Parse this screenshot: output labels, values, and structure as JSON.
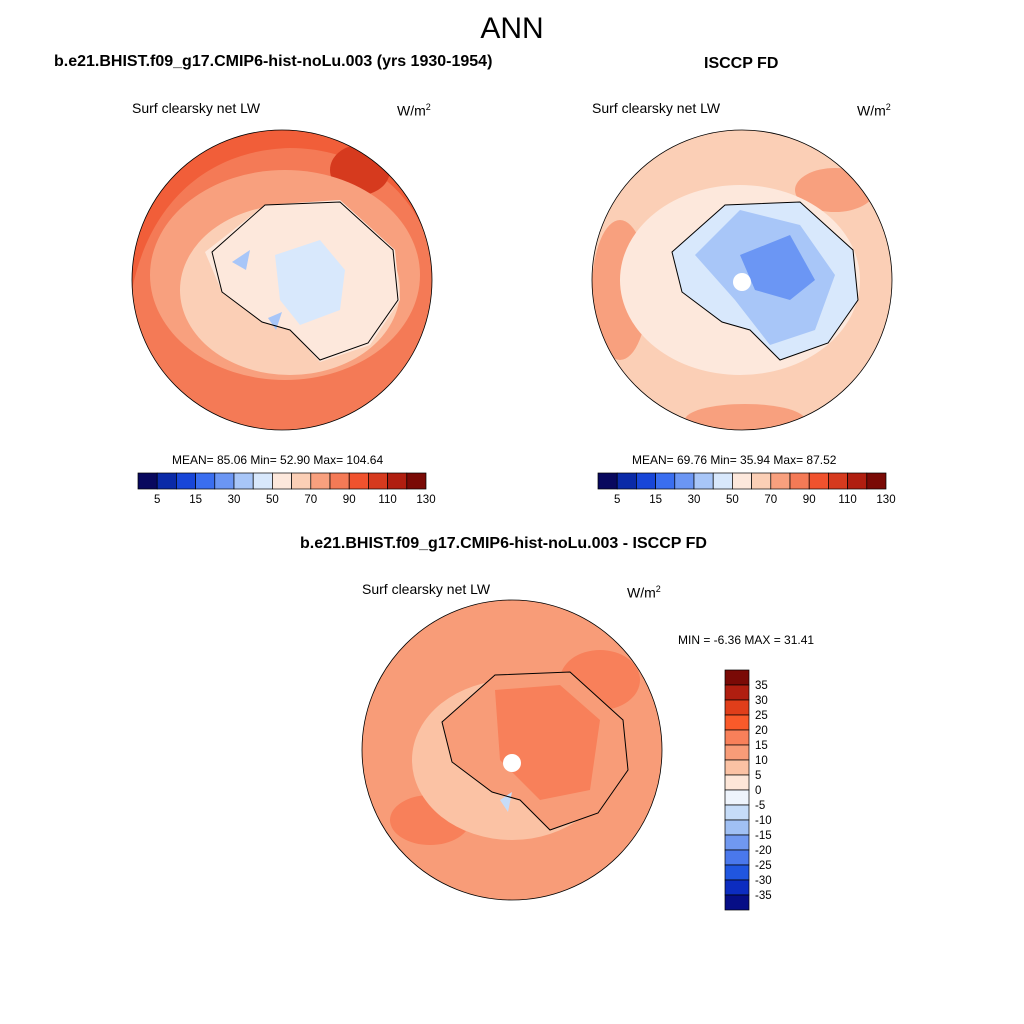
{
  "main_title": "ANN",
  "panels": {
    "model": {
      "title": "b.e21.BHIST.f09_g17.CMIP6-hist-noLu.003 (yrs 1930-1954)",
      "variable": "Surf clearsky net LW",
      "units_base": "W/m",
      "units_exp": "2",
      "stats": "MEAN=  85.06  Min=  52.90  Max= 104.64"
    },
    "obs": {
      "title": "ISCCP FD",
      "variable": "Surf clearsky net LW",
      "units_base": "W/m",
      "units_exp": "2",
      "stats": "MEAN=  69.76  Min=  35.94  Max=  87.52"
    },
    "diff": {
      "title": "b.e21.BHIST.f09_g17.CMIP6-hist-noLu.003 - ISCCP FD",
      "variable": "Surf clearsky net LW",
      "units_base": "W/m",
      "units_exp": "2",
      "stats": "MIN =  -6.36 MAX =  31.41"
    }
  },
  "colorbars": {
    "abs": {
      "colors": [
        "#08085e",
        "#0a2aa8",
        "#1846d8",
        "#3a6ef0",
        "#6b96f4",
        "#a8c6f8",
        "#d8e8fc",
        "#fde8dc",
        "#fbcfb6",
        "#f8a07e",
        "#f47a56",
        "#f0522e",
        "#d63a1e",
        "#b01e10",
        "#7a0a06"
      ],
      "labels": [
        "5",
        "15",
        "30",
        "50",
        "70",
        "90",
        "110",
        "130"
      ]
    },
    "diff": {
      "colors": [
        "#7a0a06",
        "#b01e10",
        "#e03e1a",
        "#fa5a2a",
        "#f8805a",
        "#f89c78",
        "#fbc2a4",
        "#fde6d8",
        "#eef4fc",
        "#c6dcf8",
        "#a0c0f4",
        "#7098f0",
        "#4a78ec",
        "#2056e0",
        "#0c2cc0",
        "#060e86"
      ],
      "labels": [
        "35",
        "30",
        "25",
        "20",
        "15",
        "10",
        "5",
        "0",
        "-5",
        "-10",
        "-15",
        "-20",
        "-25",
        "-30",
        "-35"
      ]
    }
  }
}
